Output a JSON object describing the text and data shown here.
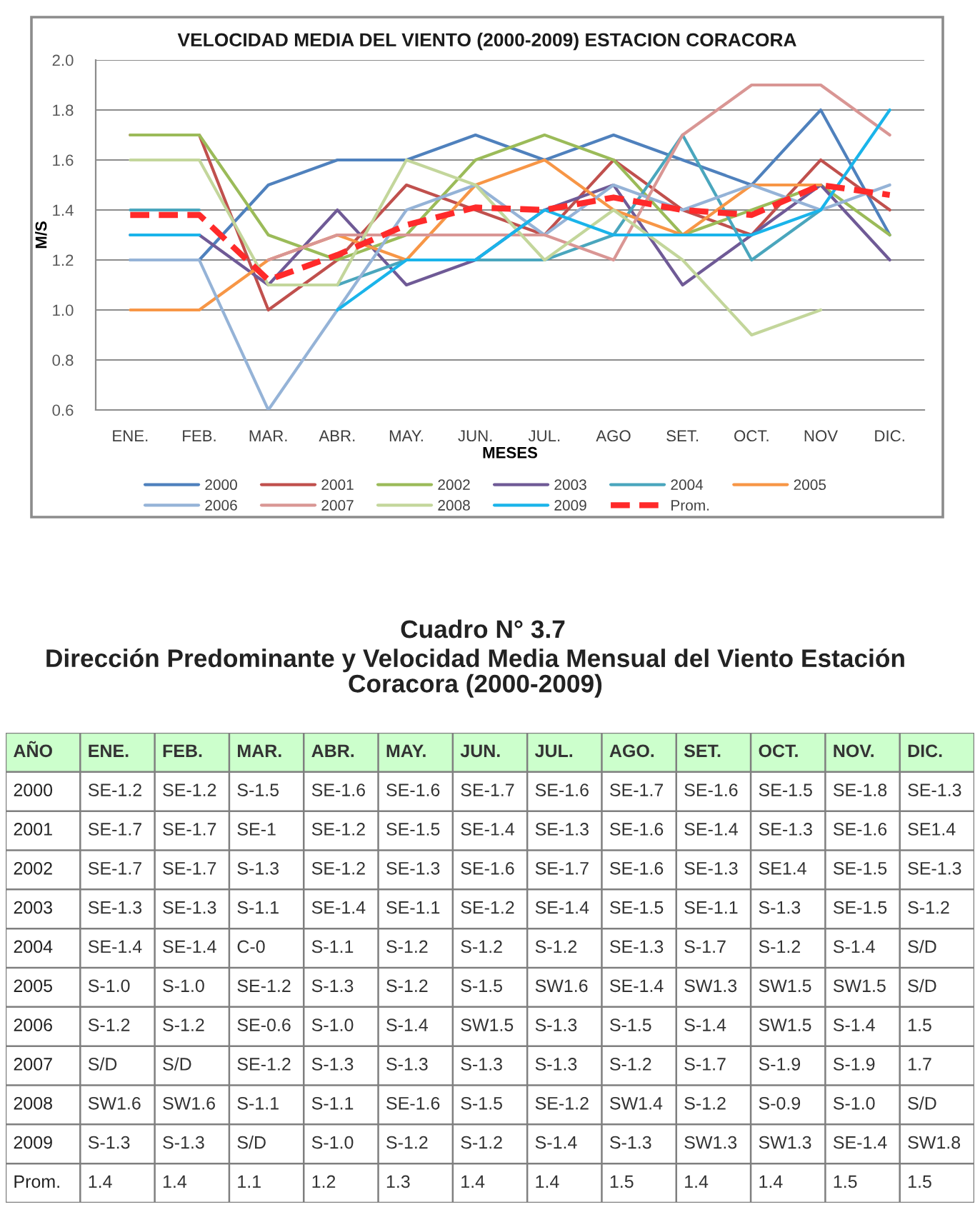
{
  "chart_data": [
    {
      "type": "line",
      "title": "VELOCIDAD MEDIA DEL VIENTO (2000-2009) ESTACION CORACORA",
      "xlabel": "MESES",
      "ylabel": "M/S",
      "categories": [
        "ENE.",
        "FEB.",
        "MAR.",
        "ABR.",
        "MAY.",
        "JUN.",
        "JUL.",
        "AGO",
        "SET.",
        "OCT.",
        "NOV",
        "DIC."
      ],
      "ylim": [
        0.6,
        2.0
      ],
      "yticks": [
        0.6,
        0.8,
        {
          "value": 1,
          "label": "1.0"
        },
        1.2,
        1.4,
        1.6,
        1.8,
        {
          "value": 2,
          "label": "2.0"
        }
      ],
      "grid": "y",
      "legend": "bottom",
      "series": [
        {
          "name": "2000",
          "color": "#4f81bd",
          "values": [
            1.2,
            1.2,
            1.5,
            1.6,
            1.6,
            1.7,
            1.6,
            1.7,
            1.6,
            1.5,
            1.8,
            1.3
          ]
        },
        {
          "name": "2001",
          "color": "#c0504d",
          "values": [
            1.7,
            1.7,
            1.0,
            1.2,
            1.5,
            1.4,
            1.3,
            1.6,
            1.4,
            1.3,
            1.6,
            1.4
          ]
        },
        {
          "name": "2002",
          "color": "#9bbb59",
          "values": [
            1.7,
            1.7,
            1.3,
            1.2,
            1.3,
            1.6,
            1.7,
            1.6,
            1.3,
            1.4,
            1.5,
            1.3
          ]
        },
        {
          "name": "2003",
          "color": "#6f5a96",
          "values": [
            1.3,
            1.3,
            1.1,
            1.4,
            1.1,
            1.2,
            1.4,
            1.5,
            1.1,
            1.3,
            1.5,
            1.2
          ]
        },
        {
          "name": "2004",
          "color": "#4aa6bd",
          "values": [
            1.4,
            1.4,
            null,
            1.1,
            1.2,
            1.2,
            1.2,
            1.3,
            1.7,
            1.2,
            1.4,
            null
          ]
        },
        {
          "name": "2005",
          "color": "#f79646",
          "values": [
            1.0,
            1.0,
            1.2,
            1.3,
            1.2,
            1.5,
            1.6,
            1.4,
            1.3,
            1.5,
            1.5,
            null
          ]
        },
        {
          "name": "2006",
          "color": "#95b3d7",
          "values": [
            1.2,
            1.2,
            0.6,
            1.0,
            1.4,
            1.5,
            1.3,
            1.5,
            1.4,
            1.5,
            1.4,
            1.5
          ]
        },
        {
          "name": "2007",
          "color": "#d99694",
          "values": [
            null,
            null,
            1.2,
            1.3,
            1.3,
            1.3,
            1.3,
            1.2,
            1.7,
            1.9,
            1.9,
            1.7
          ]
        },
        {
          "name": "2008",
          "color": "#c3d69b",
          "values": [
            1.6,
            1.6,
            1.1,
            1.1,
            1.6,
            1.5,
            1.2,
            1.4,
            1.2,
            0.9,
            1.0,
            null
          ]
        },
        {
          "name": "2009",
          "color": "#1ab4ea",
          "values": [
            1.3,
            1.3,
            null,
            1.0,
            1.2,
            1.2,
            1.4,
            1.3,
            1.3,
            1.3,
            1.4,
            1.8
          ]
        },
        {
          "name": "Prom.",
          "color": "#ff2a2a",
          "line_style": "dashed",
          "values": [
            1.38,
            1.38,
            1.12,
            1.22,
            1.34,
            1.41,
            1.4,
            1.45,
            1.4,
            1.38,
            1.5,
            1.46
          ]
        }
      ]
    },
    {
      "type": "heatmap",
      "title": "Cuadro N° 3.7",
      "subtitle": "Dirección Predominante y Velocidad Media Mensual del Viento Estación Coracora (2000-2009)",
      "ylabel": "AÑO",
      "categories": [
        "ENE.",
        "FEB.",
        "MAR.",
        "ABR.",
        "MAY.",
        "JUN.",
        "JUL.",
        "AGO.",
        "SET.",
        "OCT.",
        "NOV.",
        "DIC."
      ],
      "y_categories": [
        "2000",
        "2001",
        "2002",
        "2003",
        "2004",
        "2005",
        "2006",
        "2007",
        "2008",
        "2009",
        "Prom."
      ],
      "cells": [
        [
          null,
          null,
          null,
          null,
          null,
          null,
          null,
          null,
          null,
          null,
          null,
          null
        ],
        [
          null,
          null,
          null,
          null,
          null,
          null,
          null,
          null,
          null,
          null,
          null,
          null
        ],
        [
          null,
          null,
          null,
          null,
          null,
          null,
          null,
          null,
          null,
          null,
          null,
          null
        ],
        [
          null,
          null,
          null,
          null,
          null,
          null,
          null,
          null,
          null,
          null,
          null,
          null
        ],
        [
          null,
          null,
          null,
          null,
          null,
          null,
          null,
          null,
          null,
          null,
          null,
          null
        ],
        [
          null,
          null,
          null,
          null,
          null,
          null,
          null,
          null,
          null,
          null,
          null,
          null
        ],
        [
          null,
          null,
          null,
          null,
          null,
          null,
          null,
          null,
          null,
          null,
          null,
          1.5
        ],
        [
          null,
          null,
          null,
          null,
          null,
          null,
          null,
          null,
          null,
          null,
          null,
          1.7
        ],
        [
          null,
          null,
          null,
          null,
          null,
          null,
          null,
          null,
          null,
          null,
          null,
          null
        ],
        [
          null,
          null,
          null,
          null,
          null,
          null,
          null,
          null,
          null,
          null,
          null,
          null
        ],
        [
          1.4,
          1.4,
          1.1,
          1.2,
          1.3,
          1.4,
          1.4,
          1.5,
          1.4,
          1.4,
          1.5,
          1.5
        ]
      ],
      "cell_labels": [
        [
          "SE-1.2",
          "SE-1.2",
          "S-1.5",
          "SE-1.6",
          "SE-1.6",
          "SE-1.7",
          "SE-1.6",
          "SE-1.7",
          "SE-1.6",
          "SE-1.5",
          "SE-1.8",
          "SE-1.3"
        ],
        [
          "SE-1.7",
          "SE-1.7",
          "SE-1",
          "SE-1.2",
          "SE-1.5",
          "SE-1.4",
          "SE-1.3",
          "SE-1.6",
          "SE-1.4",
          "SE-1.3",
          "SE-1.6",
          "SE1.4"
        ],
        [
          "SE-1.7",
          "SE-1.7",
          "S-1.3",
          "SE-1.2",
          "SE-1.3",
          "SE-1.6",
          "SE-1.7",
          "SE-1.6",
          "SE-1.3",
          "SE1.4",
          "SE-1.5",
          "SE-1.3"
        ],
        [
          "SE-1.3",
          "SE-1.3",
          "S-1.1",
          "SE-1.4",
          "SE-1.1",
          "SE-1.2",
          "SE-1.4",
          "SE-1.5",
          "SE-1.1",
          "S-1.3",
          "SE-1.5",
          "S-1.2"
        ],
        [
          "SE-1.4",
          "SE-1.4",
          "C-0",
          "S-1.1",
          "S-1.2",
          "S-1.2",
          "S-1.2",
          "SE-1.3",
          "S-1.7",
          "S-1.2",
          "S-1.4",
          "S/D"
        ],
        [
          "S-1.0",
          "S-1.0",
          "SE-1.2",
          "S-1.3",
          "S-1.2",
          "S-1.5",
          "SW1.6",
          "SE-1.4",
          "SW1.3",
          "SW1.5",
          "SW1.5",
          "S/D"
        ],
        [
          "S-1.2",
          "S-1.2",
          "SE-0.6",
          "S-1.0",
          "S-1.4",
          "SW1.5",
          "S-1.3",
          "S-1.5",
          "S-1.4",
          "SW1.5",
          "S-1.4",
          "1.5"
        ],
        [
          "S/D",
          "S/D",
          "SE-1.2",
          "S-1.3",
          "S-1.3",
          "S-1.3",
          "S-1.3",
          "S-1.2",
          "S-1.7",
          "S-1.9",
          "S-1.9",
          "1.7"
        ],
        [
          "SW1.6",
          "SW1.6",
          "S-1.1",
          "S-1.1",
          "SE-1.6",
          "S-1.5",
          "SE-1.2",
          "SW1.4",
          "S-1.2",
          "S-0.9",
          "S-1.0",
          "S/D"
        ],
        [
          "S-1.3",
          "S-1.3",
          "S/D",
          "S-1.0",
          "S-1.2",
          "S-1.2",
          "S-1.4",
          "S-1.3",
          "SW1.3",
          "SW1.3",
          "SE-1.4",
          "SW1.8"
        ],
        [
          "1.4",
          "1.4",
          "1.1",
          "1.2",
          "1.3",
          "1.4",
          "1.4",
          "1.5",
          "1.4",
          "1.4",
          "1.5",
          "1.5"
        ]
      ]
    }
  ]
}
